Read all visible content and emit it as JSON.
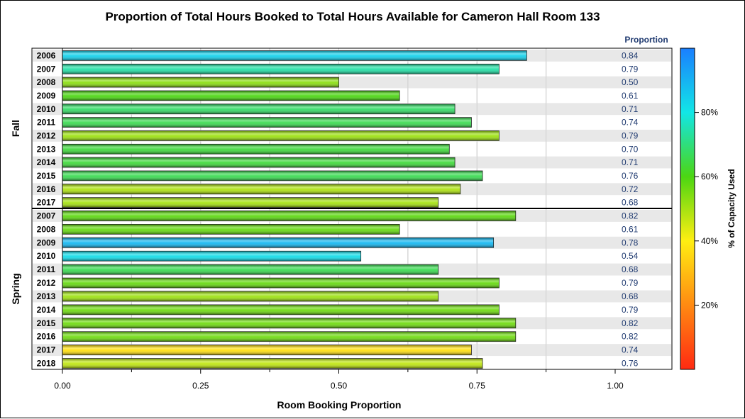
{
  "chart_data": {
    "type": "bar",
    "orientation": "horizontal",
    "title": "Proportion of Total Hours Booked to Total Hours Available for Cameron Hall Room 133",
    "xlabel": "Room Booking Proportion",
    "xlim": [
      0,
      1.0
    ],
    "x_ticks": [
      "0.00",
      "0.25",
      "0.50",
      "0.75",
      "1.00"
    ],
    "value_column_header": "Proportion",
    "colorbar_label": "% of Capacity Used",
    "colorbar_ticks": [
      "80%",
      "60%",
      "40%",
      "20%"
    ],
    "colorbar_tick_values": [
      80,
      60,
      40,
      20
    ],
    "colorbar_range": [
      0,
      100
    ],
    "colorbar_stops": [
      "#ff2a12",
      "#ff8a12",
      "#ffee12",
      "#4cd612",
      "#12e6e6",
      "#1a7fff"
    ],
    "grid": "vertical",
    "groups": [
      {
        "name": "Fall",
        "categories": [
          "2006",
          "2007",
          "2008",
          "2009",
          "2010",
          "2011",
          "2012",
          "2013",
          "2014",
          "2015",
          "2016",
          "2017"
        ],
        "values": [
          0.84,
          0.79,
          0.5,
          0.61,
          0.71,
          0.74,
          0.79,
          0.7,
          0.71,
          0.76,
          0.72,
          0.68
        ],
        "labels": [
          "0.84",
          "0.79",
          "0.50",
          "0.61",
          "0.71",
          "0.74",
          "0.79",
          "0.70",
          "0.71",
          "0.76",
          "0.72",
          "0.68"
        ],
        "capacity_pct": [
          84,
          74,
          53,
          60,
          68,
          66,
          51,
          64,
          64,
          66,
          49,
          50
        ]
      },
      {
        "name": "Spring",
        "categories": [
          "2007",
          "2008",
          "2009",
          "2010",
          "2011",
          "2012",
          "2013",
          "2014",
          "2015",
          "2016",
          "2017",
          "2018"
        ],
        "values": [
          0.82,
          0.61,
          0.78,
          0.54,
          0.68,
          0.79,
          0.68,
          0.79,
          0.82,
          0.82,
          0.74,
          0.76
        ],
        "labels": [
          "0.82",
          "0.61",
          "0.78",
          "0.54",
          "0.68",
          "0.79",
          "0.68",
          "0.79",
          "0.82",
          "0.82",
          "0.74",
          "0.76"
        ],
        "capacity_pct": [
          58,
          57,
          89,
          82,
          66,
          57,
          51,
          56,
          56,
          56,
          37,
          47
        ]
      }
    ]
  }
}
